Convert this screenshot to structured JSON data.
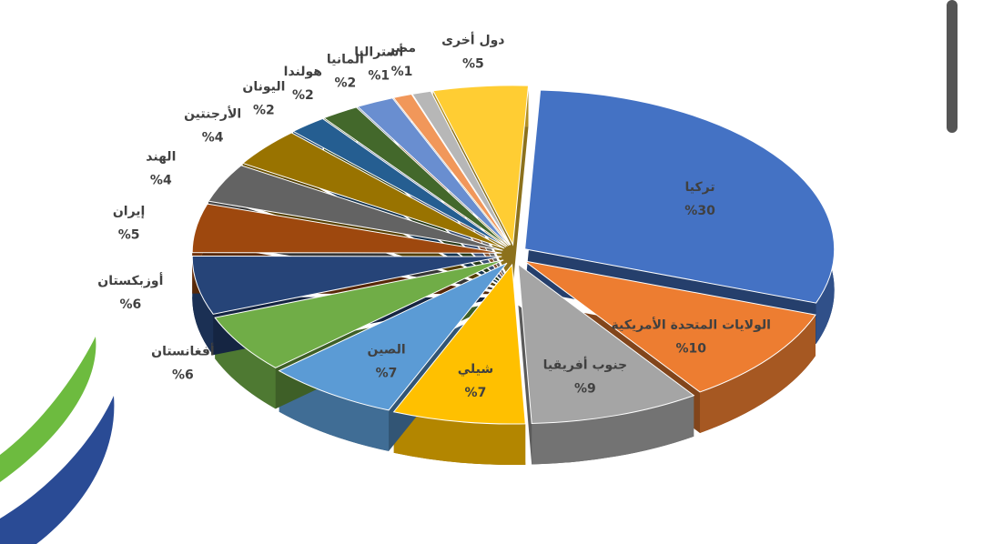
{
  "chart_data": {
    "type": "pie",
    "categories": [
      "تركيا",
      "الولايات المتحدة الأمريكية",
      "جنوب أفريقيا",
      "شيلي",
      "الصين",
      "أفغانستان",
      "أوزبكستان",
      "إيران",
      "الهند",
      "الأرجنتين",
      "اليونان",
      "هولندا",
      "ألمانيا",
      "أستراليا",
      "مصر",
      "دول أخرى"
    ],
    "values": [
      30,
      10,
      9,
      7,
      7,
      6,
      6,
      5,
      4,
      4,
      2,
      2,
      2,
      1,
      1,
      5
    ],
    "value_labels": [
      "%30",
      "%10",
      "%9",
      "%7",
      "%7",
      "%6",
      "%6",
      "%5",
      "%4",
      "%4",
      "%2",
      "%2",
      "%2",
      "%1",
      "%1",
      "%5"
    ],
    "colors": [
      "#4472c4",
      "#ed7d31",
      "#a5a5a5",
      "#ffc000",
      "#5b9bd5",
      "#70ad47",
      "#264478",
      "#9e480e",
      "#636363",
      "#997300",
      "#255e91",
      "#43682b",
      "#698ed0",
      "#f1975a",
      "#b7b7b7",
      "#ffcd33"
    ]
  }
}
